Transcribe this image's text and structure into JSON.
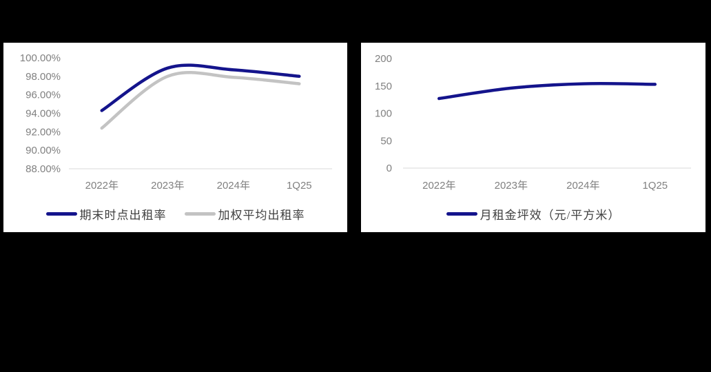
{
  "colors": {
    "page_background": "#000000",
    "panel_background": "#FFFFFF",
    "axis_line": "#D9D9D9",
    "tick_text": "#808080",
    "legend_text": "#404040",
    "navy_series": "#14148C",
    "gray_series": "#C3C3C3"
  },
  "chart_data": [
    {
      "type": "line",
      "title": "",
      "categories": [
        "2022年",
        "2023年",
        "2024年",
        "1Q25"
      ],
      "series": [
        {
          "name": "期末时点出租率",
          "color": "#14148C",
          "values": [
            94.3,
            98.9,
            98.7,
            98.0
          ]
        },
        {
          "name": "加权平均出租率",
          "color": "#C3C3C3",
          "values": [
            92.4,
            98.0,
            97.9,
            97.2
          ]
        }
      ],
      "ylim": [
        88,
        100
      ],
      "ytick_step": 2,
      "ytick_labels": [
        "100.00%",
        "98.00%",
        "96.00%",
        "94.00%",
        "92.00%",
        "90.00%",
        "88.00%"
      ],
      "xlabel": "",
      "ylabel": "",
      "grid": false,
      "smooth": true,
      "legend_position": "bottom"
    },
    {
      "type": "line",
      "title": "",
      "categories": [
        "2022年",
        "2023年",
        "2024年",
        "1Q25"
      ],
      "series": [
        {
          "name": "月租金坪效（元/平方米）",
          "color": "#14148C",
          "values": [
            127,
            146,
            154,
            153
          ]
        }
      ],
      "ylim": [
        0,
        200
      ],
      "ytick_step": 50,
      "ytick_labels": [
        "200",
        "150",
        "100",
        "50",
        "0"
      ],
      "xlabel": "",
      "ylabel": "",
      "grid": false,
      "smooth": true,
      "legend_position": "bottom"
    }
  ]
}
